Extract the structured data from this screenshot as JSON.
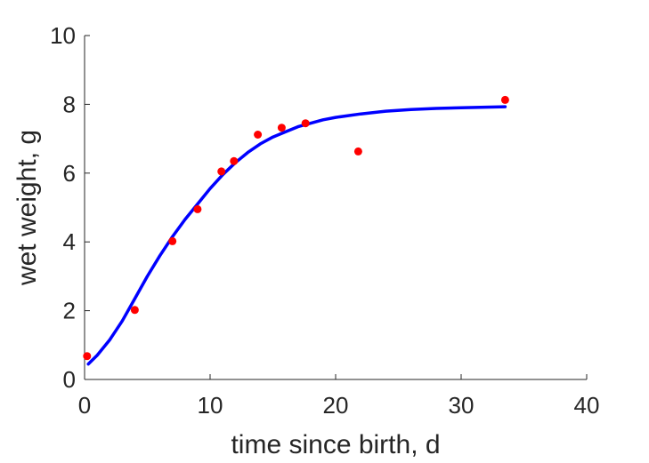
{
  "chart_data": {
    "type": "scatter",
    "title": "",
    "xlabel": "time since birth, d",
    "ylabel": "wet weight, g",
    "xlim": [
      0,
      40
    ],
    "ylim": [
      0,
      10
    ],
    "x_ticks": [
      0,
      10,
      20,
      30,
      40
    ],
    "y_ticks": [
      0,
      2,
      4,
      6,
      8,
      10
    ],
    "grid": false,
    "legend": "none",
    "series": [
      {
        "kind": "points",
        "color": "#ff0000",
        "x": [
          0.2,
          4.0,
          7.0,
          9.0,
          10.9,
          11.9,
          13.8,
          15.7,
          17.6,
          21.8,
          33.5
        ],
        "y": [
          0.68,
          2.02,
          4.02,
          4.95,
          6.05,
          6.35,
          7.12,
          7.32,
          7.45,
          6.63,
          8.13
        ]
      },
      {
        "kind": "line",
        "color": "#0000ff",
        "x": [
          0.3,
          1,
          2,
          3,
          4,
          5,
          6,
          7,
          8,
          9,
          10,
          11,
          12,
          13,
          14,
          15,
          16,
          17,
          18,
          19,
          20,
          22,
          24,
          26,
          28,
          30,
          33.5
        ],
        "y": [
          0.45,
          0.7,
          1.15,
          1.7,
          2.35,
          3.0,
          3.6,
          4.15,
          4.65,
          5.1,
          5.55,
          5.95,
          6.3,
          6.6,
          6.85,
          7.05,
          7.2,
          7.35,
          7.45,
          7.55,
          7.62,
          7.72,
          7.8,
          7.85,
          7.88,
          7.9,
          7.93
        ]
      }
    ]
  }
}
